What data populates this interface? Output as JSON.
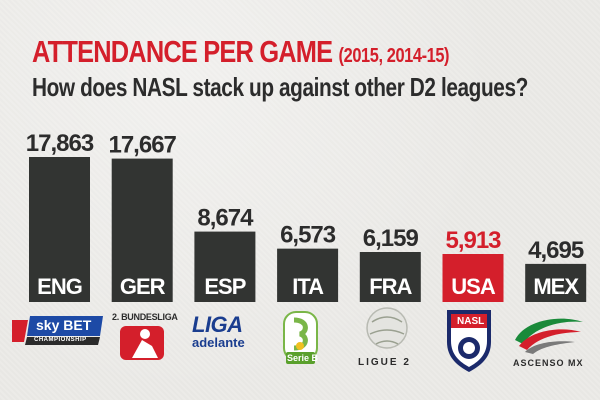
{
  "header": {
    "title": "ATTENDANCE PER GAME",
    "title_years": "(2015, 2014-15)",
    "subtitle": "How does NASL stack up against other D2 leagues?"
  },
  "chart_data": {
    "type": "bar",
    "title": "ATTENDANCE PER GAME (2015, 2014-15)",
    "subtitle": "How does NASL stack up against other D2 leagues?",
    "categories": [
      "ENG",
      "GER",
      "ESP",
      "ITA",
      "FRA",
      "USA",
      "MEX"
    ],
    "values": [
      17863,
      17667,
      8674,
      6573,
      6159,
      5913,
      4695
    ],
    "value_labels": [
      "17,863",
      "17,667",
      "8,674",
      "6,573",
      "6,159",
      "5,913",
      "4,695"
    ],
    "highlight_category": "USA",
    "ylim": [
      0,
      17863
    ],
    "grid": false,
    "legend": "none"
  },
  "logos": {
    "eng": {
      "line1": "sky BET",
      "line2": "CHAMPIONSHIP"
    },
    "ger": {
      "line1": "2. BUNDESLIGA"
    },
    "esp": {
      "line1": "LIGA",
      "line2": "adelante"
    },
    "ita": {
      "line1": "Serie B"
    },
    "fra": {
      "line1": "LIGUE 2"
    },
    "usa": {
      "line1": "NASL"
    },
    "mex": {
      "line1": "ASCENSO MX"
    }
  },
  "colors": {
    "bar": "#323432",
    "highlight": "#d41f2b",
    "label_default": "#2c2c2c",
    "title_red": "#d41f2b",
    "background": "#ecebe8"
  }
}
